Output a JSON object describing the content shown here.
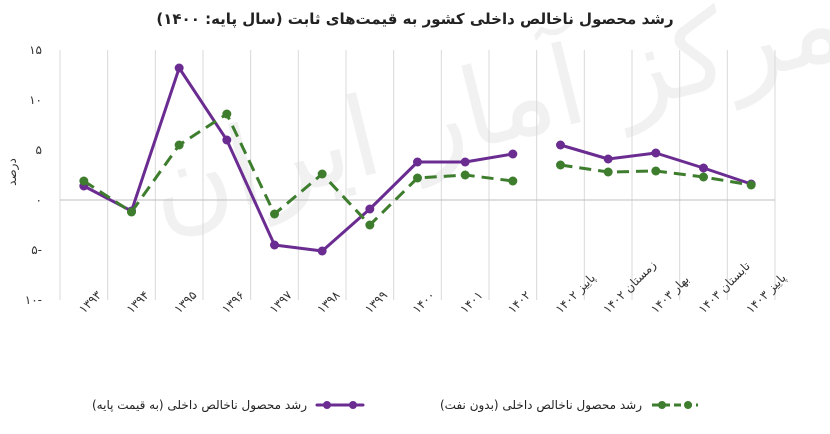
{
  "watermark": "مرکز آمار ایران",
  "chart_data": {
    "type": "line",
    "title": "رشد محصول ناخالص داخلی کشور به قیمت‌های ثابت (سال پایه: ۱۴۰۰)",
    "ylabel": "درصد",
    "xlabel": "",
    "ylim": [
      -10,
      15
    ],
    "yticks": [
      15,
      10,
      5,
      0,
      -5,
      -10
    ],
    "ytick_labels": [
      "۱۵",
      "۱۰",
      "۵",
      "۰",
      "۵-",
      "۱۰-"
    ],
    "categories": [
      "۱۳۹۳",
      "۱۳۹۴",
      "۱۳۹۵",
      "۱۳۹۶",
      "۱۳۹۷",
      "۱۳۹۸",
      "۱۳۹۹",
      "۱۴۰۰",
      "۱۴۰۱",
      "۱۴۰۲",
      "پاییز ۱۴۰۲",
      "زمستان ۱۴۰۲",
      "بهار ۱۴۰۳",
      "تابستان ۱۴۰۳",
      "پاییز ۱۴۰۳"
    ],
    "grid": "vertical",
    "legend_position": "bottom",
    "series": [
      {
        "name": "رشد محصول ناخالص داخلی (به قیمت پایه)",
        "color": "#6a2c91",
        "style": "solid",
        "values": [
          1.4,
          -1.1,
          13.2,
          6.0,
          -4.5,
          -5.1,
          -0.9,
          3.8,
          3.8,
          4.6,
          5.5,
          4.1,
          4.7,
          3.2,
          1.6
        ]
      },
      {
        "name": "رشد محصول ناخالص داخلی (بدون نفت)",
        "color": "#3e7d2e",
        "style": "dashed",
        "values": [
          1.9,
          -1.2,
          5.5,
          8.6,
          -1.4,
          2.6,
          -2.5,
          2.2,
          2.5,
          1.9,
          3.5,
          2.8,
          2.9,
          2.3,
          1.5
        ]
      }
    ],
    "gaps_after_index": [
      9
    ]
  }
}
